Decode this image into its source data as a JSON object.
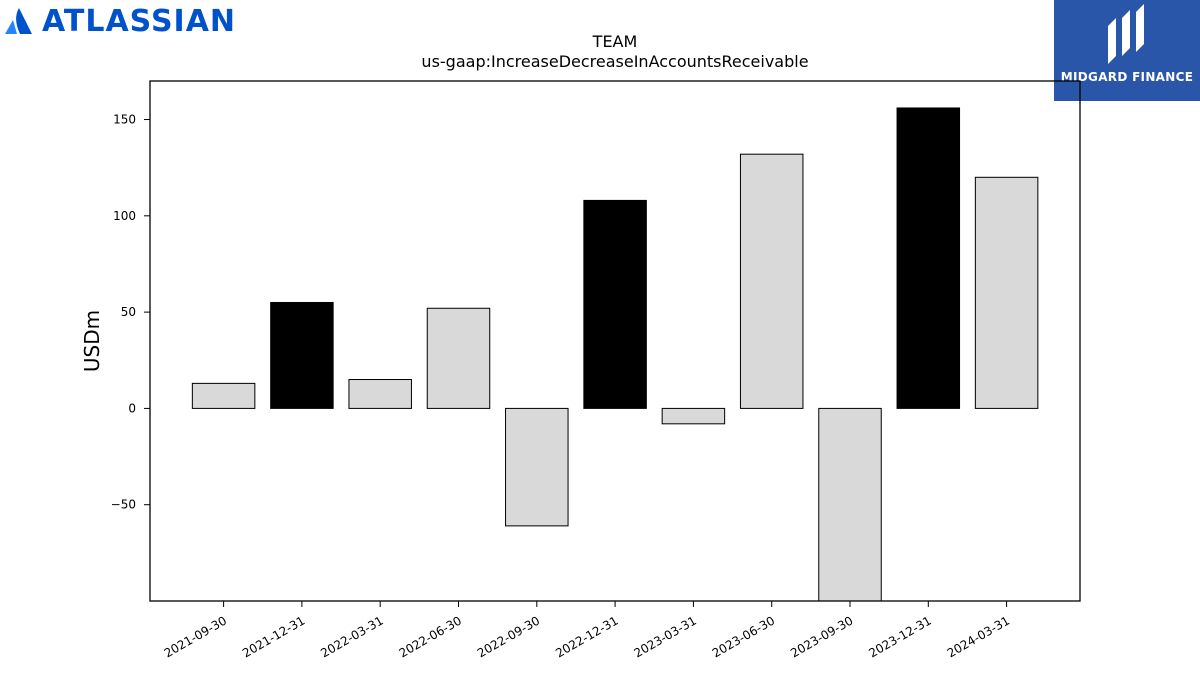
{
  "brand_left": {
    "text": "ATLASSIAN",
    "color": "#0052cc"
  },
  "brand_right": {
    "text": "MIDGARD FINANCE",
    "background": "#2956a8"
  },
  "chart_data": {
    "type": "bar",
    "title": "TEAM",
    "subtitle": "us-gaap:IncreaseDecreaseInAccountsReceivable",
    "xlabel": "",
    "ylabel": "USDm",
    "ylim": [
      -100,
      170
    ],
    "yticks": [
      150,
      100,
      50,
      0,
      -50
    ],
    "ytick_labels": [
      "150",
      "100",
      "50",
      "0",
      "−50"
    ],
    "categories": [
      "2021-09-30",
      "2021-12-31",
      "2022-03-31",
      "2022-06-30",
      "2022-09-30",
      "2022-12-31",
      "2023-03-31",
      "2023-06-30",
      "2023-09-30",
      "2023-12-31",
      "2024-03-31"
    ],
    "values": [
      13,
      55,
      15,
      52,
      -61,
      108,
      -8,
      132,
      -100,
      156,
      120
    ],
    "highlight": [
      false,
      true,
      false,
      false,
      false,
      true,
      false,
      false,
      false,
      true,
      false
    ],
    "colors": {
      "highlight": "#000000",
      "normal": "#d9d9d9",
      "edge": "#000000"
    },
    "grid": false
  }
}
